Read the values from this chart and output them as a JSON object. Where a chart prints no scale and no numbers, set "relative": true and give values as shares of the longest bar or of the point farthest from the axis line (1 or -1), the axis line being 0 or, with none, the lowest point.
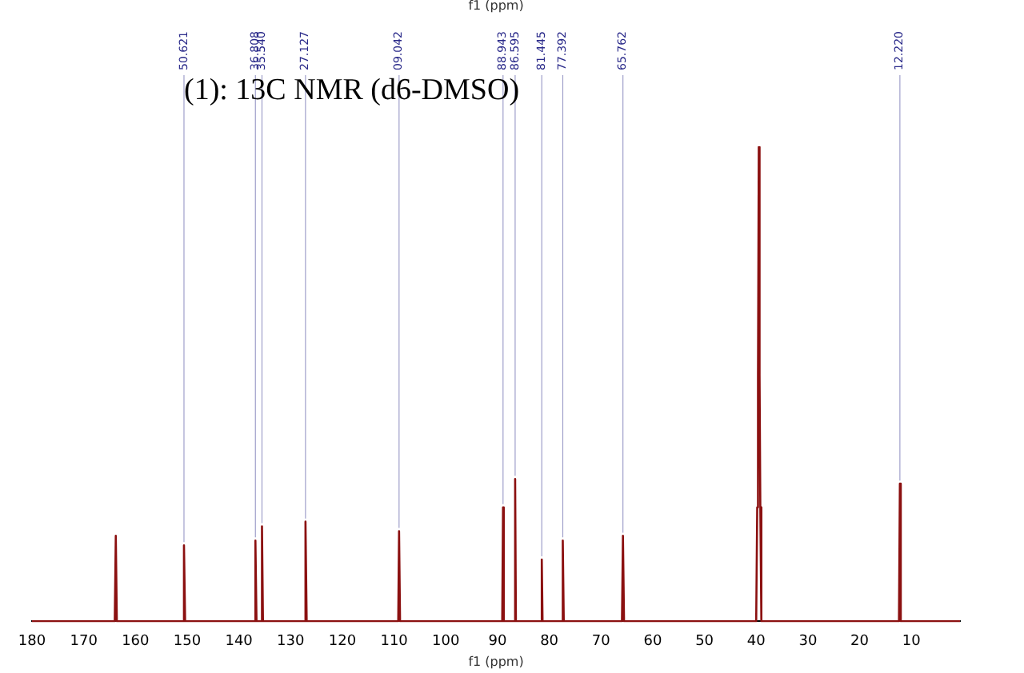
{
  "chart_data": {
    "type": "line",
    "title": "(1): 13C NMR (d6-DMSO)",
    "xlabel": "f1 (ppm)",
    "relative": true,
    "marker": "none",
    "grid": false,
    "legend": false,
    "xlim": [
      180,
      0.6
    ],
    "xticks": [
      180,
      170,
      160,
      150,
      140,
      130,
      120,
      110,
      100,
      90,
      80,
      70,
      60,
      50,
      40,
      30,
      20,
      10
    ],
    "x": [
      180,
      164.0,
      163.8,
      163.6,
      150.8,
      150.62,
      150.4,
      137.0,
      136.81,
      136.6,
      135.7,
      135.54,
      135.35,
      127.3,
      127.13,
      126.9,
      109.2,
      109.04,
      108.85,
      89.1,
      88.94,
      88.8,
      86.75,
      86.6,
      86.45,
      81.6,
      81.45,
      81.3,
      77.55,
      77.39,
      77.2,
      65.95,
      65.76,
      65.55,
      40.0,
      39.8,
      39.65,
      39.5,
      39.35,
      39.2,
      39.0,
      12.4,
      12.22,
      12.05,
      0.6
    ],
    "series": [
      {
        "color": "#8b1010",
        "values": [
          0,
          0,
          0.18,
          0,
          0,
          0.16,
          0,
          0,
          0.17,
          0,
          0,
          0.2,
          0,
          0,
          0.21,
          0,
          0,
          0.19,
          0,
          0,
          0.24,
          0,
          0,
          0.3,
          0,
          0,
          0.13,
          0,
          0,
          0.17,
          0,
          0,
          0.18,
          0,
          0,
          0.24,
          0.52,
          1,
          0.52,
          0.24,
          0,
          0,
          0.29,
          0,
          0
        ]
      }
    ],
    "annotations": [
      "f1 (ppm)",
      {
        "text": "50.621",
        "x": 150.62,
        "y": 0.16
      },
      {
        "text": "36.808",
        "x": 136.81,
        "y": 0.17
      },
      {
        "text": "35.540",
        "x": 135.54,
        "y": 0.2
      },
      {
        "text": "27.127",
        "x": 127.13,
        "y": 0.21
      },
      {
        "text": "09.042",
        "x": 109.04,
        "y": 0.19
      },
      {
        "text": "88.943",
        "x": 88.94,
        "y": 0.24
      },
      {
        "text": "86.595",
        "x": 86.6,
        "y": 0.3
      },
      {
        "text": "81.445",
        "x": 81.45,
        "y": 0.13
      },
      {
        "text": "77.392",
        "x": 77.39,
        "y": 0.17
      },
      {
        "text": "65.762",
        "x": 65.76,
        "y": 0.18
      },
      {
        "text": "12.220",
        "x": 12.22,
        "y": 0.29
      }
    ]
  }
}
